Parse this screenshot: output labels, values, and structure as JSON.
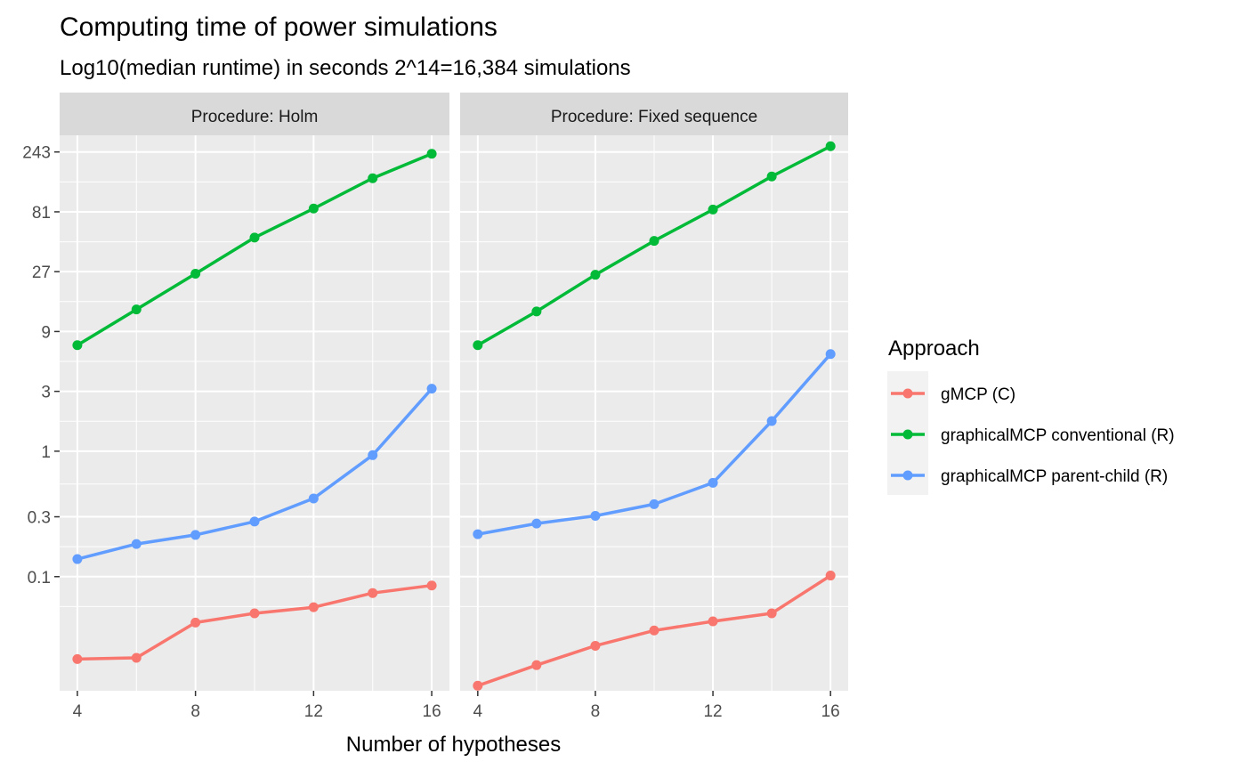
{
  "chart_data": {
    "type": "line",
    "title": "Computing time of power simulations",
    "subtitle": "Log10(median runtime) in seconds 2^14=16,384 simulations",
    "xlabel": "Number of hypotheses",
    "ylabel": "",
    "y_scale": "log10",
    "ylim": [
      0.0123,
      330
    ],
    "xlim": [
      3.4,
      16.6
    ],
    "x_ticks": [
      4,
      8,
      12,
      16
    ],
    "y_ticks": [
      243,
      81,
      27,
      9,
      3,
      1,
      0.3,
      0.1
    ],
    "y_tick_labels": [
      "243",
      "81",
      "27",
      "9",
      "3",
      "1",
      "0.3",
      "0.1"
    ],
    "grid": true,
    "legend": {
      "title": "Approach",
      "position": "right",
      "entries": [
        "gMCP (C)",
        "graphicalMCP conventional (R)",
        "graphicalMCP parent-child (R)"
      ]
    },
    "x": [
      4,
      6,
      8,
      10,
      12,
      14,
      16
    ],
    "panels": [
      {
        "strip": "Procedure: Holm",
        "series": [
          {
            "name": "gMCP (C)",
            "color": "#F8766D",
            "values": [
              0.022,
              0.0225,
              0.043,
              0.051,
              0.057,
              0.074,
              0.085
            ]
          },
          {
            "name": "graphicalMCP conventional (R)",
            "color": "#00BA38",
            "values": [
              7.0,
              13.5,
              26.0,
              50.5,
              86.0,
              150,
              235
            ]
          },
          {
            "name": "graphicalMCP parent-child (R)",
            "color": "#619CFF",
            "values": [
              0.138,
              0.182,
              0.215,
              0.275,
              0.42,
              0.93,
              3.15
            ]
          }
        ]
      },
      {
        "strip": "Procedure: Fixed sequence",
        "series": [
          {
            "name": "gMCP (C)",
            "color": "#F8766D",
            "values": [
              0.0135,
              0.0197,
              0.0281,
              0.0372,
              0.044,
              0.051,
              0.102
            ]
          },
          {
            "name": "graphicalMCP conventional (R)",
            "color": "#00BA38",
            "values": [
              7.0,
              13.0,
              25.5,
              47.5,
              84.5,
              155,
              270
            ]
          },
          {
            "name": "graphicalMCP parent-child (R)",
            "color": "#619CFF",
            "values": [
              0.218,
              0.265,
              0.305,
              0.378,
              0.56,
              1.74,
              5.95
            ]
          }
        ]
      }
    ]
  }
}
